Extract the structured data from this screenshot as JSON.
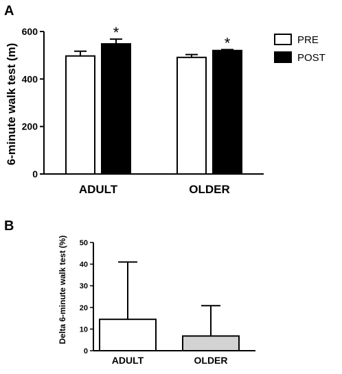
{
  "chart_data": [
    {
      "panel_label": "A",
      "type": "bar",
      "ylabel": "6-minute walk test (m)",
      "xlabel": "",
      "ylim": [
        0,
        600
      ],
      "yticks": [
        0,
        200,
        400,
        600
      ],
      "categories": [
        "ADULT",
        "OLDER"
      ],
      "series": [
        {
          "name": "PRE",
          "values": [
            497,
            491
          ],
          "errors": [
            20,
            12
          ],
          "color": "#ffffff"
        },
        {
          "name": "POST",
          "values": [
            548,
            520
          ],
          "errors": [
            20,
            4
          ],
          "color": "#000000"
        }
      ],
      "annotations": [
        {
          "category": "ADULT",
          "series": "POST",
          "text": "*"
        },
        {
          "category": "OLDER",
          "series": "POST",
          "text": "*"
        }
      ],
      "legend_position": "top-right",
      "grid": false
    },
    {
      "panel_label": "B",
      "type": "bar",
      "ylabel": "Delta 6-minute walk test (%)",
      "xlabel": "",
      "ylim": [
        0,
        50
      ],
      "yticks": [
        0,
        10,
        20,
        30,
        40,
        50
      ],
      "categories": [
        "ADULT",
        "OLDER"
      ],
      "values": [
        14.5,
        6.8
      ],
      "errors": [
        26.5,
        14
      ],
      "colors": [
        "#ffffff",
        "#d3d3d3"
      ],
      "grid": false
    }
  ]
}
